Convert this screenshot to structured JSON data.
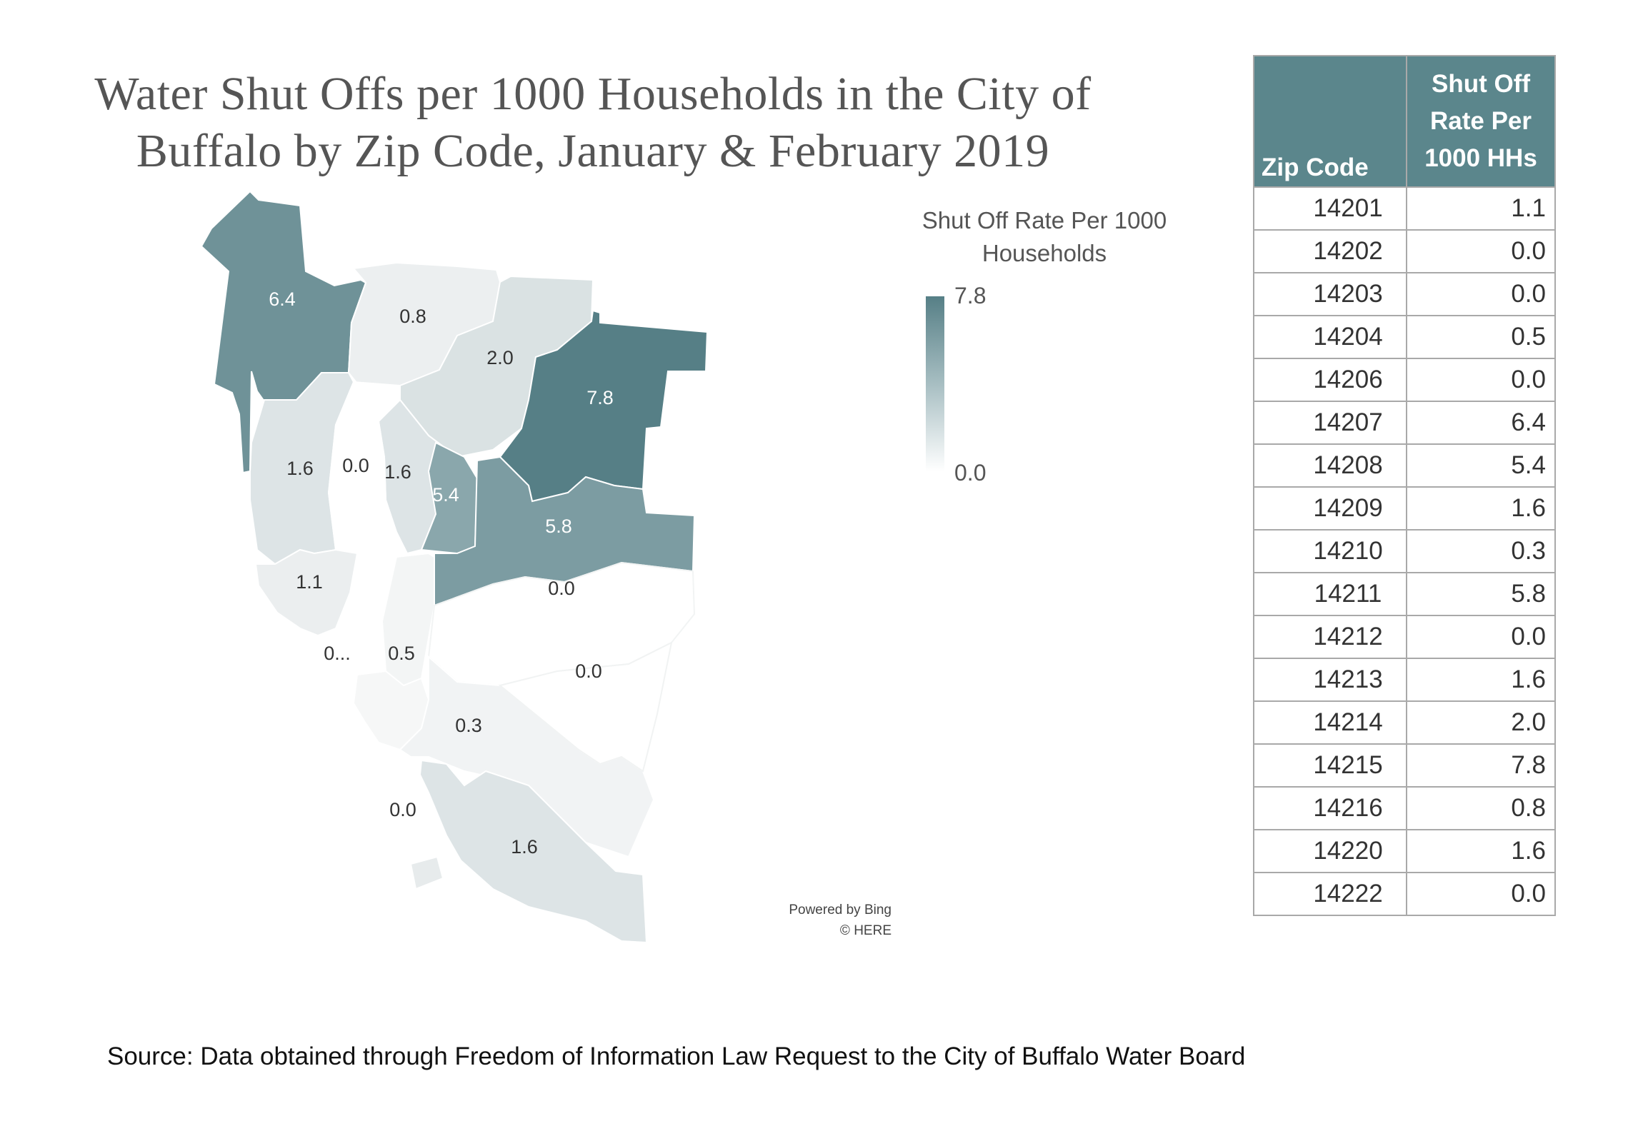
{
  "title": {
    "line1": "Water Shut Offs per 1000 Households in the City of",
    "line2": "Buffalo by Zip Code, January & February 2019"
  },
  "legend": {
    "title_line1": "Shut Off Rate Per 1000",
    "title_line2": "Households",
    "max_label": "7.8",
    "min_label": "0.0",
    "color_high": "#567f86",
    "color_low": "#ffffff"
  },
  "map": {
    "region_labels": [
      "6.4",
      "0.8",
      "2.0",
      "7.8",
      "1.6",
      "0.0",
      "1.6",
      "5.4",
      "5.8",
      "1.1",
      "0.0",
      "0...",
      "0.5",
      "0.0",
      "0.3",
      "0.0",
      "1.6"
    ],
    "attribution_line1": "Powered by Bing",
    "attribution_line2": "© HERE"
  },
  "table": {
    "header_zip": "Zip Code",
    "header_rate_line1": "Shut Off",
    "header_rate_line2": "Rate Per",
    "header_rate_line3": "1000 HHs",
    "rows": [
      {
        "zip": "14201",
        "rate": "1.1"
      },
      {
        "zip": "14202",
        "rate": "0.0"
      },
      {
        "zip": "14203",
        "rate": "0.0"
      },
      {
        "zip": "14204",
        "rate": "0.5"
      },
      {
        "zip": "14206",
        "rate": "0.0"
      },
      {
        "zip": "14207",
        "rate": "6.4"
      },
      {
        "zip": "14208",
        "rate": "5.4"
      },
      {
        "zip": "14209",
        "rate": "1.6"
      },
      {
        "zip": "14210",
        "rate": "0.3"
      },
      {
        "zip": "14211",
        "rate": "5.8"
      },
      {
        "zip": "14212",
        "rate": "0.0"
      },
      {
        "zip": "14213",
        "rate": "1.6"
      },
      {
        "zip": "14214",
        "rate": "2.0"
      },
      {
        "zip": "14215",
        "rate": "7.8"
      },
      {
        "zip": "14216",
        "rate": "0.8"
      },
      {
        "zip": "14220",
        "rate": "1.6"
      },
      {
        "zip": "14222",
        "rate": "0.0"
      }
    ]
  },
  "source": "Source: Data obtained through Freedom of Information Law Request to the City of Buffalo Water Board"
}
